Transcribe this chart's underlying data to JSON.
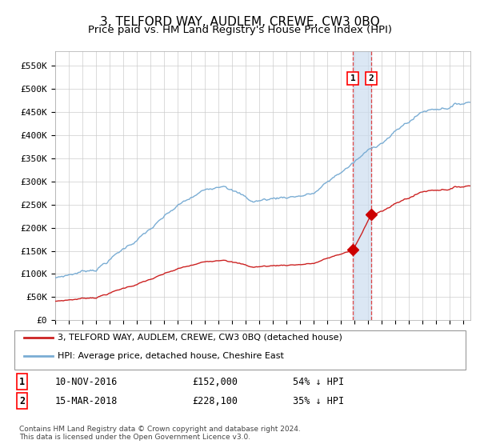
{
  "title": "3, TELFORD WAY, AUDLEM, CREWE, CW3 0BQ",
  "subtitle": "Price paid vs. HM Land Registry's House Price Index (HPI)",
  "title_fontsize": 11,
  "subtitle_fontsize": 9.5,
  "ylim": [
    0,
    580000
  ],
  "yticks": [
    0,
    50000,
    100000,
    150000,
    200000,
    250000,
    300000,
    350000,
    400000,
    450000,
    500000,
    550000
  ],
  "ytick_labels": [
    "£0",
    "£50K",
    "£100K",
    "£150K",
    "£200K",
    "£250K",
    "£300K",
    "£350K",
    "£400K",
    "£450K",
    "£500K",
    "£550K"
  ],
  "hpi_color": "#7aadd4",
  "price_color": "#cc2222",
  "dot_color": "#cc0000",
  "vline_color": "#dd4444",
  "shade_color": "#ccddf0",
  "transaction1_date": 2016.87,
  "transaction1_price": 152000,
  "transaction2_date": 2018.21,
  "transaction2_price": 228100,
  "legend_label1": "3, TELFORD WAY, AUDLEM, CREWE, CW3 0BQ (detached house)",
  "legend_label2": "HPI: Average price, detached house, Cheshire East",
  "table_row1": [
    "1",
    "10-NOV-2016",
    "£152,000",
    "54% ↓ HPI"
  ],
  "table_row2": [
    "2",
    "15-MAR-2018",
    "£228,100",
    "35% ↓ HPI"
  ],
  "footer": "Contains HM Land Registry data © Crown copyright and database right 2024.\nThis data is licensed under the Open Government Licence v3.0.",
  "background_color": "#ffffff",
  "grid_color": "#cccccc"
}
